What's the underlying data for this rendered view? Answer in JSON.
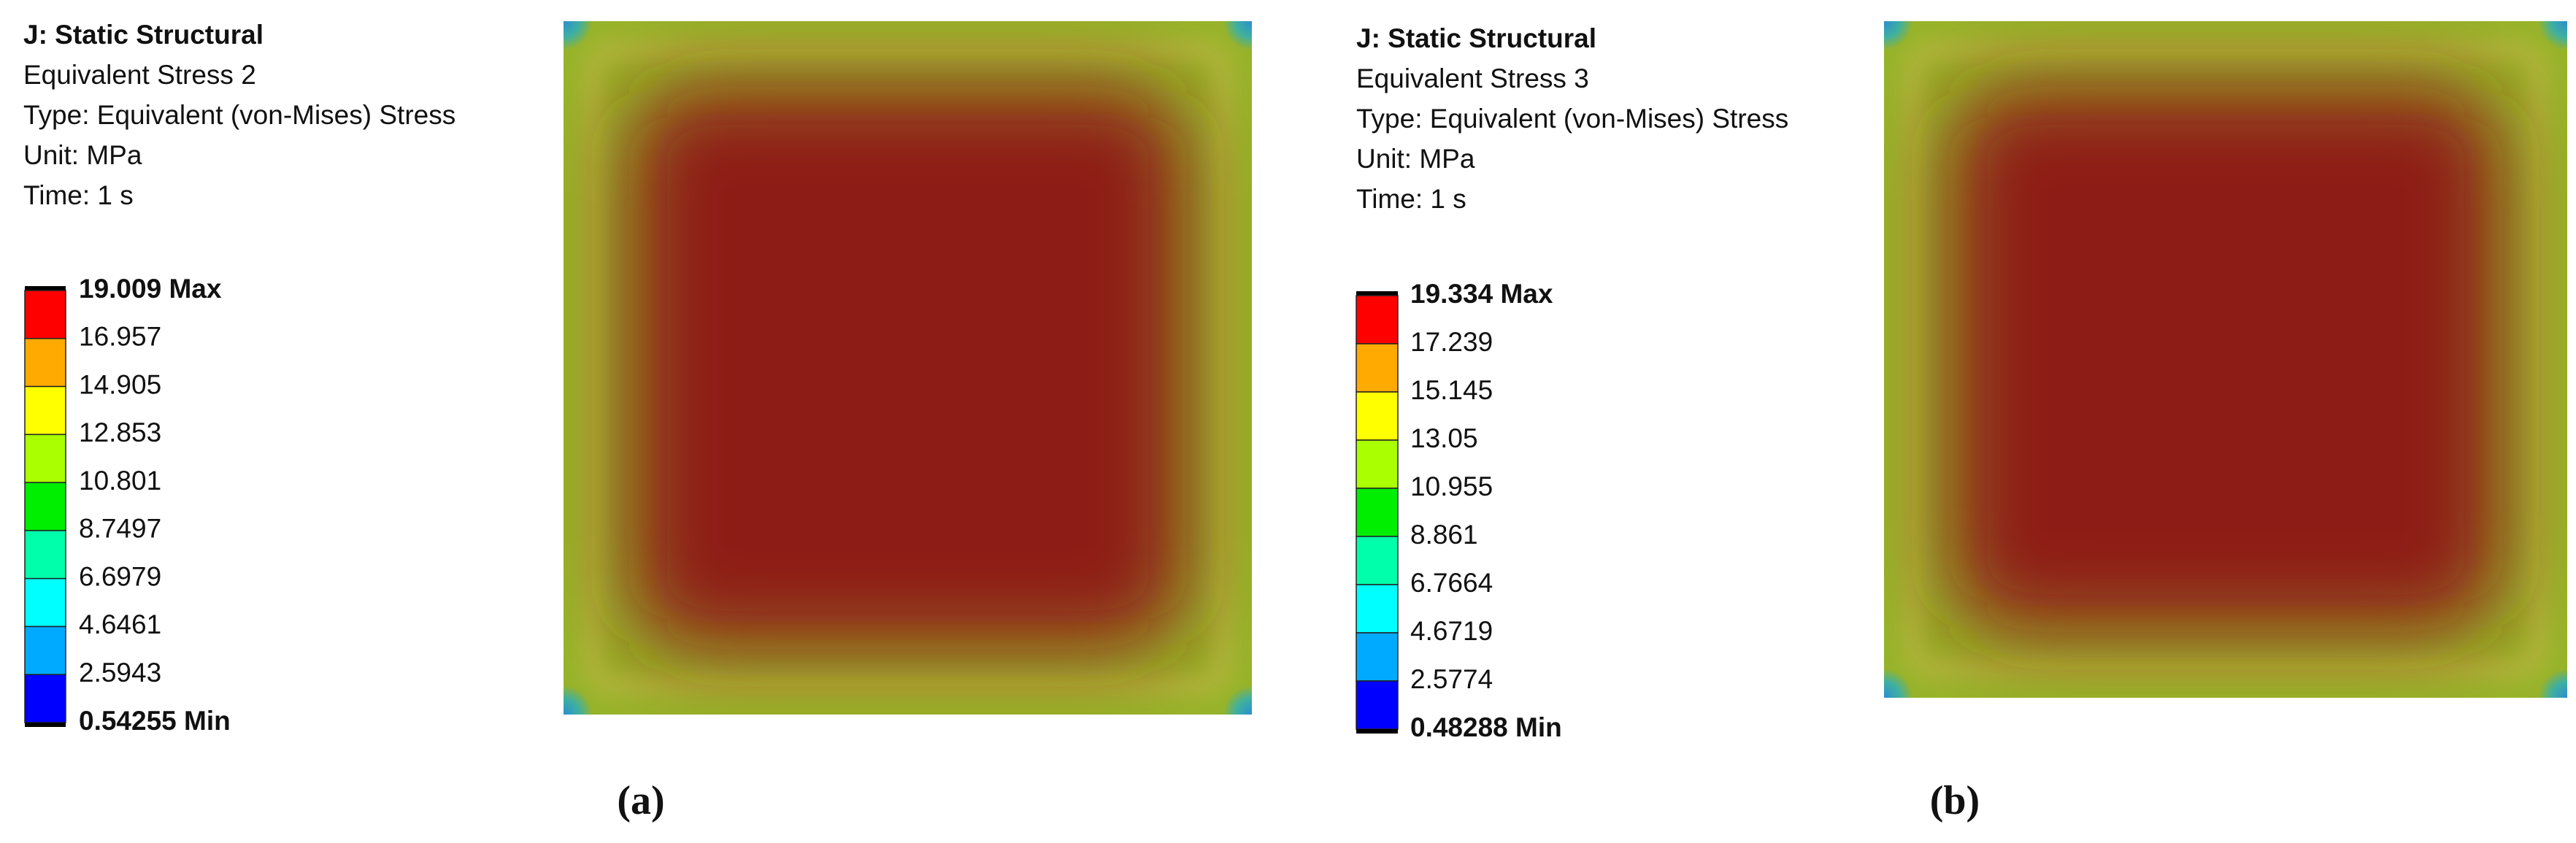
{
  "panels": [
    {
      "title": "J: Static Structural",
      "result": "Equivalent Stress 2",
      "type": "Type: Equivalent (von-Mises) Stress",
      "unit": "Unit: MPa",
      "time": "Time: 1 s",
      "legend": [
        "19.009 Max",
        "16.957",
        "14.905",
        "12.853",
        "10.801",
        "8.7497",
        "6.6979",
        "4.6461",
        "2.5943",
        "0.54255 Min"
      ],
      "caption": "(a)"
    },
    {
      "title": "J: Static Structural",
      "result": "Equivalent Stress 3",
      "type": "Type: Equivalent (von-Mises) Stress",
      "unit": "Unit: MPa",
      "time": "Time: 1 s",
      "legend": [
        "19.334 Max",
        "17.239",
        "15.145",
        "13.05",
        "10.955",
        "8.861",
        "6.7664",
        "4.6719",
        "2.5774",
        "0.48288 Min"
      ],
      "caption": "(b)"
    }
  ]
}
